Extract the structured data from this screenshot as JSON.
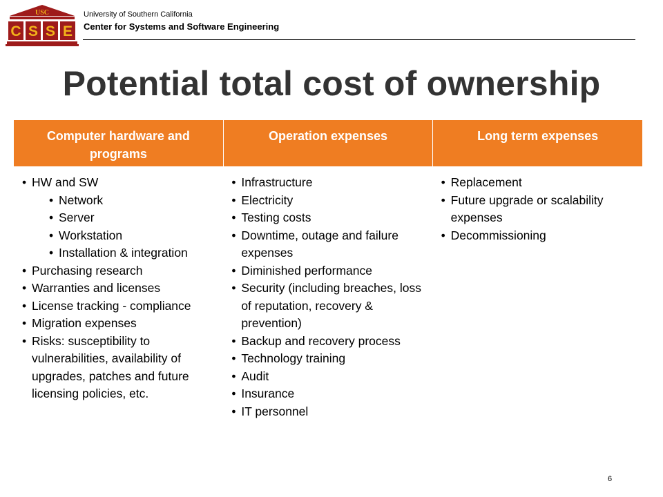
{
  "header": {
    "logo_text": "USC",
    "logo_letters": [
      "C",
      "S",
      "S",
      "E"
    ],
    "org_line1": "University of Southern California",
    "org_line2": "Center for Systems and Software Engineering"
  },
  "title": "Potential total cost of ownership",
  "table": {
    "columns": [
      {
        "heading": "Computer hardware and programs",
        "items": [
          {
            "text": "HW and SW",
            "level": 1
          },
          {
            "text": "Network",
            "level": 2
          },
          {
            "text": "Server",
            "level": 2
          },
          {
            "text": "Workstation",
            "level": 2
          },
          {
            "text": "Installation & integration",
            "level": 2
          },
          {
            "text": "Purchasing research",
            "level": 1
          },
          {
            "text": "Warranties and licenses",
            "level": 1
          },
          {
            "text": "License tracking - compliance",
            "level": 1
          },
          {
            "text": "Migration expenses",
            "level": 1
          },
          {
            "text": "Risks: susceptibility to vulnerabilities, availability of upgrades, patches and future licensing policies, etc.",
            "level": 1
          }
        ]
      },
      {
        "heading": "Operation expenses",
        "items": [
          {
            "text": "Infrastructure",
            "level": 1
          },
          {
            "text": "Electricity",
            "level": 1
          },
          {
            "text": "Testing costs",
            "level": 1
          },
          {
            "text": "Downtime, outage and failure expenses",
            "level": 1
          },
          {
            "text": "Diminished performance",
            "level": 1
          },
          {
            "text": "Security (including breaches, loss of reputation, recovery & prevention)",
            "level": 1
          },
          {
            "text": "Backup and recovery process",
            "level": 1
          },
          {
            "text": "Technology training",
            "level": 1
          },
          {
            "text": "Audit",
            "level": 1
          },
          {
            "text": "Insurance",
            "level": 1
          },
          {
            "text": "IT personnel",
            "level": 1
          }
        ]
      },
      {
        "heading": "Long term expenses",
        "items": [
          {
            "text": "Replacement",
            "level": 1
          },
          {
            "text": "Future upgrade or scalability expenses",
            "level": 1
          },
          {
            "text": "Decommissioning",
            "level": 1
          }
        ]
      }
    ]
  },
  "footer": {
    "page_number": "6"
  },
  "colors": {
    "header_orange": "#ef7d22",
    "logo_red": "#9e1b1b",
    "logo_gold": "#f2b21a",
    "title_gray": "#333333"
  }
}
